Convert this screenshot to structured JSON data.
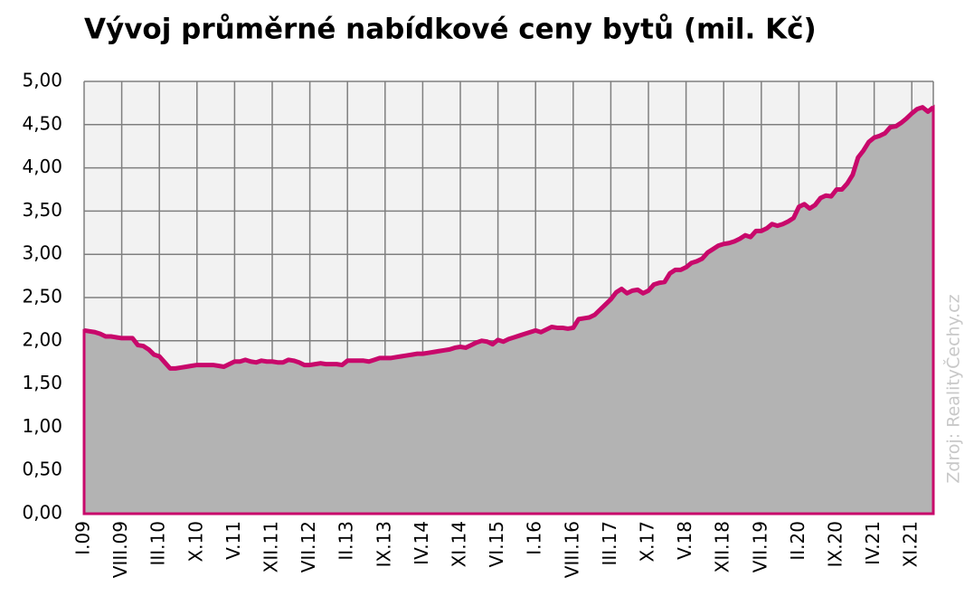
{
  "chart_data": {
    "type": "area",
    "title": "Vývoj průměrné nabídkové ceny bytů (mil. Kč)",
    "source": "Zdroj: RealityČechy.cz",
    "categories": [
      "I.09",
      null,
      null,
      null,
      null,
      null,
      null,
      "VIII.09",
      null,
      null,
      null,
      null,
      null,
      null,
      "III.10",
      null,
      null,
      null,
      null,
      null,
      null,
      "X.10",
      null,
      null,
      null,
      null,
      null,
      null,
      "V.11",
      null,
      null,
      null,
      null,
      null,
      null,
      "XII.11",
      null,
      null,
      null,
      null,
      null,
      null,
      "VII.12",
      null,
      null,
      null,
      null,
      null,
      null,
      "II.13",
      null,
      null,
      null,
      null,
      null,
      null,
      "IX.13",
      null,
      null,
      null,
      null,
      null,
      null,
      "IV.14",
      null,
      null,
      null,
      null,
      null,
      null,
      "XI.14",
      null,
      null,
      null,
      null,
      null,
      null,
      "VI.15",
      null,
      null,
      null,
      null,
      null,
      null,
      "I.16",
      null,
      null,
      null,
      null,
      null,
      null,
      "VIII.16",
      null,
      null,
      null,
      null,
      null,
      null,
      "III.17",
      null,
      null,
      null,
      null,
      null,
      null,
      "X.17",
      null,
      null,
      null,
      null,
      null,
      null,
      "V.18",
      null,
      null,
      null,
      null,
      null,
      null,
      "XII.18",
      null,
      null,
      null,
      null,
      null,
      null,
      "VII.19",
      null,
      null,
      null,
      null,
      null,
      null,
      "II.20",
      null,
      null,
      null,
      null,
      null,
      null,
      "IX.20",
      null,
      null,
      null,
      null,
      null,
      null,
      "IV.21",
      null,
      null,
      null,
      null,
      null,
      null,
      "XI.21",
      null,
      null,
      null,
      null
    ],
    "values": [
      2.12,
      2.11,
      2.1,
      2.08,
      2.05,
      2.05,
      2.04,
      2.03,
      2.03,
      2.03,
      1.95,
      1.94,
      1.9,
      1.84,
      1.82,
      1.75,
      1.68,
      1.68,
      1.69,
      1.7,
      1.71,
      1.72,
      1.72,
      1.72,
      1.72,
      1.71,
      1.7,
      1.73,
      1.76,
      1.76,
      1.78,
      1.76,
      1.75,
      1.77,
      1.76,
      1.76,
      1.75,
      1.75,
      1.78,
      1.77,
      1.75,
      1.72,
      1.72,
      1.73,
      1.74,
      1.73,
      1.73,
      1.73,
      1.72,
      1.77,
      1.77,
      1.77,
      1.77,
      1.76,
      1.78,
      1.8,
      1.8,
      1.8,
      1.81,
      1.82,
      1.83,
      1.84,
      1.85,
      1.85,
      1.86,
      1.87,
      1.88,
      1.89,
      1.9,
      1.92,
      1.93,
      1.92,
      1.95,
      1.98,
      2.0,
      1.99,
      1.96,
      2.01,
      1.99,
      2.02,
      2.04,
      2.06,
      2.08,
      2.1,
      2.12,
      2.1,
      2.13,
      2.16,
      2.15,
      2.15,
      2.14,
      2.15,
      2.25,
      2.26,
      2.27,
      2.3,
      2.36,
      2.42,
      2.48,
      2.56,
      2.6,
      2.55,
      2.58,
      2.59,
      2.55,
      2.58,
      2.65,
      2.67,
      2.68,
      2.78,
      2.82,
      2.82,
      2.85,
      2.9,
      2.92,
      2.95,
      3.02,
      3.06,
      3.1,
      3.12,
      3.13,
      3.15,
      3.18,
      3.22,
      3.2,
      3.27,
      3.27,
      3.3,
      3.35,
      3.33,
      3.35,
      3.38,
      3.42,
      3.55,
      3.58,
      3.53,
      3.57,
      3.65,
      3.68,
      3.67,
      3.75,
      3.75,
      3.82,
      3.92,
      4.12,
      4.2,
      4.3,
      4.35,
      4.37,
      4.4,
      4.47,
      4.48,
      4.52,
      4.57,
      4.63,
      4.68,
      4.7,
      4.65,
      4.7
    ],
    "line_color": "#c8086b",
    "fill_color": "#b3b3b3",
    "ylim": [
      0,
      5
    ],
    "yticks": [
      {
        "value": 0,
        "label": "0,00"
      },
      {
        "value": 0.5,
        "label": "0,50"
      },
      {
        "value": 1,
        "label": "1,00"
      },
      {
        "value": 1.5,
        "label": "1,50"
      },
      {
        "value": 2,
        "label": "2,00"
      },
      {
        "value": 2.5,
        "label": "2,50"
      },
      {
        "value": 3,
        "label": "3,00"
      },
      {
        "value": 3.5,
        "label": "3,50"
      },
      {
        "value": 4,
        "label": "4,00"
      },
      {
        "value": 4.5,
        "label": "4,50"
      },
      {
        "value": 5,
        "label": "5,00"
      }
    ],
    "grid": true
  }
}
